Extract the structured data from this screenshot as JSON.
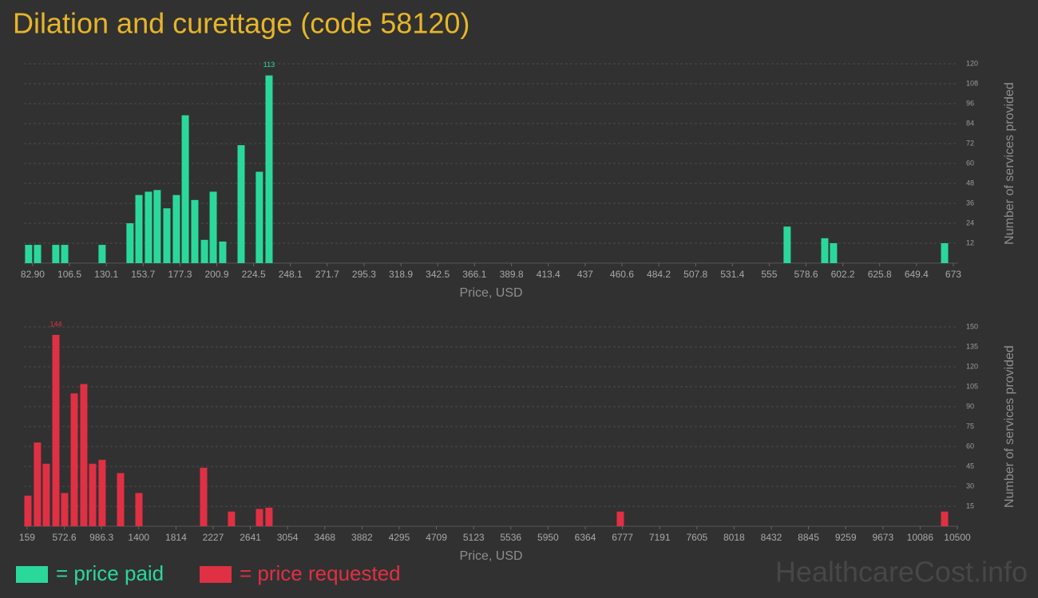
{
  "chart_data": [
    {
      "type": "bar",
      "title": "Dilation and curettage (code 58120)",
      "x_label": "Price, USD",
      "y_label": "Number of services provided",
      "x": [
        80.3,
        86.0,
        97.7,
        103.4,
        127.4,
        145.3,
        151.0,
        157.1,
        162.7,
        168.9,
        175.0,
        180.7,
        186.8,
        193.0,
        198.6,
        204.7,
        216.5,
        228.2,
        234.4,
        566.5,
        590.6,
        596.2,
        667.4
      ],
      "series": [
        {
          "name": "= price paid",
          "color": "#2bd89b",
          "values": [
            11,
            11,
            11,
            11,
            11,
            24,
            41,
            43,
            44,
            33,
            41,
            89,
            38,
            14,
            43,
            13,
            71,
            55,
            113,
            22,
            15,
            12,
            12
          ]
        }
      ],
      "xlim": [
        77.3,
        676.1
      ],
      "xticks": [
        {
          "value": 82.9,
          "label": "82.90"
        },
        106.5,
        130.1,
        153.7,
        177.3,
        200.9,
        224.5,
        248.1,
        271.7,
        295.3,
        318.9,
        342.5,
        366.1,
        389.8,
        413.4,
        437,
        460.6,
        484.2,
        507.8,
        531.4,
        555,
        578.6,
        602.2,
        625.8,
        649.4,
        673
      ],
      "ylim": [
        0,
        120
      ],
      "yticks": [
        12,
        24,
        36,
        48,
        60,
        72,
        84,
        96,
        108,
        120
      ],
      "grid": true
    },
    {
      "type": "bar",
      "x_label": "Price, USD",
      "y_label": "Number of services provided",
      "x": [
        168,
        274,
        372,
        479,
        576,
        683,
        789,
        887,
        993,
        1198,
        1402,
        2121,
        2431,
        2742,
        2848,
        6754,
        10358
      ],
      "series": [
        {
          "name": "= price requested",
          "color": "#e03043",
          "values": [
            23,
            63,
            47,
            144,
            25,
            100,
            107,
            47,
            50,
            40,
            25,
            44,
            11,
            13,
            14,
            11,
            11
          ]
        }
      ],
      "xlim": [
        124,
        10509
      ],
      "xticks": [
        159,
        572.6,
        986.3,
        1400,
        1814,
        2227,
        2641,
        3054,
        3468,
        3882,
        4295,
        4709,
        5123,
        5536,
        5950,
        6364,
        6777,
        7191,
        7605,
        8018,
        8432,
        8845,
        9259,
        9673,
        10086,
        10500
      ],
      "ylim": [
        0,
        150
      ],
      "yticks": [
        15,
        30,
        45,
        60,
        75,
        90,
        105,
        120,
        135,
        150
      ],
      "grid": true
    }
  ],
  "footer": {
    "watermark": "HealthcareCost.info"
  }
}
